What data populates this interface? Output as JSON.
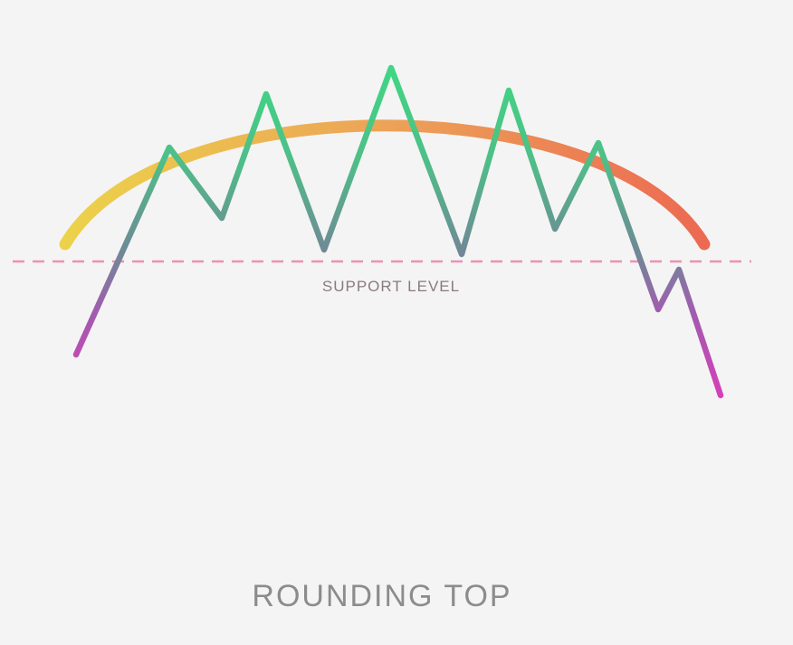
{
  "diagram": {
    "title": "ROUNDING TOP",
    "support_label": "SUPPORT LEVEL",
    "colors": {
      "background": "#f4f4f4",
      "arc_start": "#ecd24a",
      "arc_mid": "#eca357",
      "arc_end": "#ec6a52",
      "price_green": "#3fd684",
      "price_teal": "#5f9a8e",
      "price_magenta": "#d63fb8",
      "support_line": "#ee8fb4",
      "support_text": "#8a7a80",
      "title_text": "#8c8c8c"
    }
  }
}
